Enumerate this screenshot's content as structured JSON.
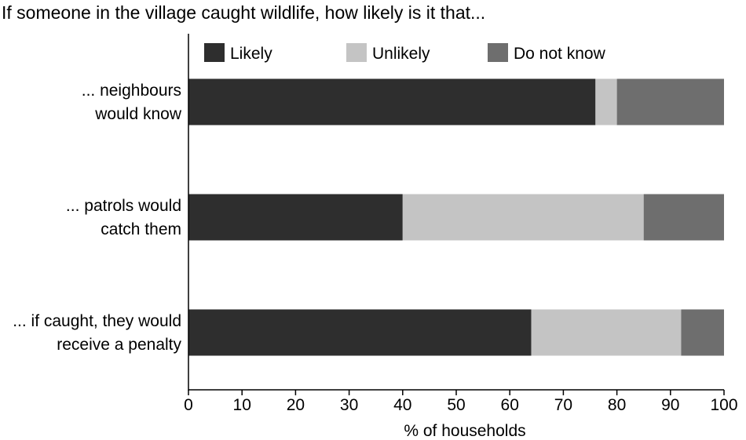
{
  "chart_data": {
    "type": "bar",
    "orientation": "horizontal",
    "stacked": true,
    "title": "If someone in the village caught wildlife, how likely is it that...",
    "xlabel": "% of households",
    "ylabel": "",
    "xlim": [
      0,
      100
    ],
    "xticks": [
      0,
      10,
      20,
      30,
      40,
      50,
      60,
      70,
      80,
      90,
      100
    ],
    "grid": false,
    "legend_position": "top",
    "categories": [
      [
        "... neighbours",
        "would know"
      ],
      [
        "... patrols would",
        "catch them"
      ],
      [
        "... if caught, they would",
        "receive a penalty"
      ]
    ],
    "series": [
      {
        "name": "Likely",
        "color": "#2e2e2e",
        "values": [
          76,
          40,
          64
        ]
      },
      {
        "name": "Unlikely",
        "color": "#c4c4c4",
        "values": [
          4,
          45,
          28
        ]
      },
      {
        "name": "Do not know",
        "color": "#6e6e6e",
        "values": [
          20,
          15,
          8
        ]
      }
    ]
  }
}
